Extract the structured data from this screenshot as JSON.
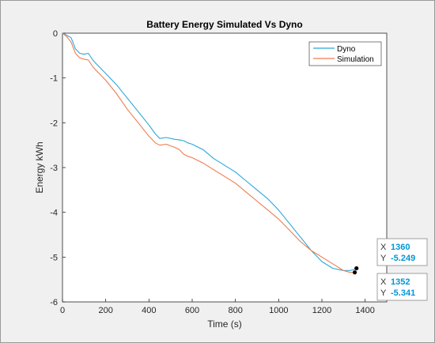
{
  "chart_data": {
    "type": "line",
    "title": "Battery Energy Simulated Vs Dyno",
    "xlabel": "Time (s)",
    "ylabel": "Energy kWh",
    "xlim": [
      0,
      1500
    ],
    "ylim": [
      -6,
      0
    ],
    "xticks": [
      "0",
      "200",
      "400",
      "600",
      "800",
      "1000",
      "1200",
      "1400"
    ],
    "yticks": [
      "0",
      "-1",
      "-2",
      "-3",
      "-4",
      "-5",
      "-6"
    ],
    "grid": false,
    "legend_position": "top-right",
    "colors": {
      "dyno": "#2aa7d9",
      "simulation": "#f07a4e"
    },
    "series": [
      {
        "name": "Dyno",
        "x": [
          0,
          20,
          40,
          60,
          80,
          100,
          120,
          140,
          160,
          200,
          250,
          300,
          350,
          400,
          430,
          450,
          480,
          520,
          540,
          560,
          580,
          600,
          650,
          700,
          750,
          800,
          850,
          900,
          950,
          1000,
          1050,
          1100,
          1150,
          1200,
          1250,
          1300,
          1330,
          1345,
          1360
        ],
        "y": [
          0,
          -0.05,
          -0.1,
          -0.35,
          -0.45,
          -0.47,
          -0.45,
          -0.6,
          -0.7,
          -0.9,
          -1.15,
          -1.45,
          -1.75,
          -2.05,
          -2.25,
          -2.35,
          -2.33,
          -2.37,
          -2.38,
          -2.4,
          -2.45,
          -2.48,
          -2.6,
          -2.8,
          -2.95,
          -3.1,
          -3.3,
          -3.5,
          -3.7,
          -3.95,
          -4.25,
          -4.55,
          -4.85,
          -5.1,
          -5.25,
          -5.3,
          -5.3,
          -5.28,
          -5.249
        ]
      },
      {
        "name": "Simulation",
        "x": [
          0,
          20,
          40,
          60,
          80,
          100,
          120,
          140,
          160,
          200,
          250,
          300,
          350,
          400,
          430,
          450,
          480,
          520,
          540,
          560,
          580,
          600,
          650,
          700,
          750,
          800,
          850,
          900,
          950,
          1000,
          1050,
          1100,
          1150,
          1200,
          1250,
          1300,
          1330,
          1345,
          1352
        ],
        "y": [
          0,
          -0.08,
          -0.2,
          -0.45,
          -0.55,
          -0.58,
          -0.6,
          -0.75,
          -0.85,
          -1.05,
          -1.35,
          -1.7,
          -2.0,
          -2.3,
          -2.45,
          -2.5,
          -2.48,
          -2.55,
          -2.6,
          -2.7,
          -2.75,
          -2.78,
          -2.9,
          -3.05,
          -3.2,
          -3.35,
          -3.55,
          -3.75,
          -3.95,
          -4.15,
          -4.4,
          -4.65,
          -4.85,
          -5.0,
          -5.15,
          -5.3,
          -5.34,
          -5.34,
          -5.341
        ]
      }
    ],
    "datatips": [
      {
        "x_label": "X",
        "x_value": "1360",
        "y_label": "Y",
        "y_value": "-5.249"
      },
      {
        "x_label": "X",
        "x_value": "1352",
        "y_label": "Y",
        "y_value": "-5.341"
      }
    ]
  }
}
